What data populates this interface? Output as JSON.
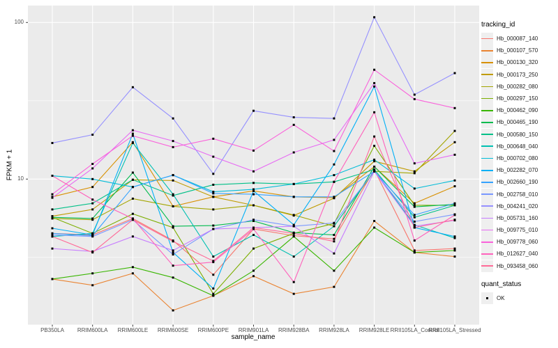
{
  "figure": {
    "ylabel": "FPKM + 1",
    "xlabel": "sample_name",
    "y_tick_labels": [
      "100",
      "10"
    ],
    "legend": {
      "title": "tracking_id"
    },
    "quant_legend": {
      "title": "quant_status",
      "items": [
        {
          "label": "OK",
          "symbol": "filled-square",
          "color": "#000000"
        }
      ]
    },
    "panel_bg": "#ebebeb",
    "grid_color": "#ffffff",
    "tick_color": "#333333",
    "tick_label_color": "#4d4d4d",
    "point_color": "#000000"
  },
  "chart_data": {
    "type": "line",
    "log_y": true,
    "title": "",
    "xlabel": "sample_name",
    "ylabel": "FPKM + 1",
    "y_ticks": [
      10,
      100
    ],
    "y_minor_ticks": [
      3.162,
      31.62
    ],
    "ylim": [
      1.15,
      130
    ],
    "grid": true,
    "legend_position": "right",
    "legend_title": "tracking_id",
    "point_marker": "black-square",
    "categories": [
      "PB350LA",
      "RRIM600LA",
      "RRIM600LE",
      "RRIM600SE",
      "RRIM600PE",
      "RRIM901LA",
      "RRIM928BA",
      "RRIM928LA",
      "RRIM928LE",
      "RRII105LA_Control",
      "RRII105LA_Stressed"
    ],
    "series": [
      {
        "name": "Hb_000087_140",
        "color": "#F8766D",
        "values": [
          4.5,
          4.4,
          5.6,
          4.05,
          2.45,
          4.8,
          4.35,
          4.15,
          11.5,
          3.5,
          3.6
        ]
      },
      {
        "name": "Hb_000107_570",
        "color": "#EA8331",
        "values": [
          2.3,
          2.1,
          2.5,
          1.45,
          1.8,
          2.4,
          1.85,
          2.05,
          5.4,
          3.4,
          3.2
        ]
      },
      {
        "name": "Hb_000130_320",
        "color": "#D89000",
        "values": [
          7.7,
          8.9,
          17.2,
          6.7,
          7.7,
          8.4,
          7.7,
          7.6,
          12.0,
          7.0,
          9.0
        ]
      },
      {
        "name": "Hb_000173_250",
        "color": "#C09B00",
        "values": [
          5.8,
          6.4,
          9.9,
          9.8,
          7.7,
          6.8,
          5.85,
          7.55,
          13.0,
          11.2,
          17.2
        ]
      },
      {
        "name": "Hb_000282_080",
        "color": "#A3A500",
        "values": [
          5.6,
          5.5,
          7.5,
          6.7,
          6.4,
          6.8,
          5.9,
          5.0,
          11.2,
          10.9,
          20.3
        ]
      },
      {
        "name": "Hb_000297_150",
        "color": "#7CAE00",
        "values": [
          5.7,
          4.5,
          6.0,
          4.9,
          1.85,
          3.6,
          4.5,
          5.2,
          16.3,
          6.8,
          6.8
        ]
      },
      {
        "name": "Hb_000462_090",
        "color": "#39B600",
        "values": [
          2.3,
          2.5,
          2.74,
          2.35,
          1.8,
          2.6,
          4.3,
          2.6,
          4.9,
          3.4,
          3.5
        ]
      },
      {
        "name": "Hb_000465_190",
        "color": "#00BB4E",
        "values": [
          5.7,
          5.6,
          11.0,
          5.0,
          5.05,
          5.4,
          4.55,
          4.4,
          12.0,
          6.65,
          6.9
        ]
      },
      {
        "name": "Hb_000580_150",
        "color": "#00C087",
        "values": [
          6.4,
          7.0,
          9.9,
          7.85,
          9.2,
          9.45,
          9.3,
          9.6,
          11.5,
          5.7,
          6.8
        ]
      },
      {
        "name": "Hb_000648_040",
        "color": "#00C0B2",
        "values": [
          4.3,
          4.5,
          17.0,
          8.0,
          3.2,
          4.4,
          3.2,
          5.0,
          11.3,
          5.1,
          4.2
        ]
      },
      {
        "name": "Hb_000702_080",
        "color": "#00BCD8",
        "values": [
          10.5,
          10.0,
          8.9,
          10.6,
          8.3,
          8.6,
          9.3,
          10.6,
          13.3,
          8.7,
          9.8
        ]
      },
      {
        "name": "Hb_002282_070",
        "color": "#00B0F6",
        "values": [
          4.85,
          4.4,
          19.5,
          3.4,
          2.0,
          8.4,
          5.1,
          12.4,
          39,
          4.9,
          4.3
        ]
      },
      {
        "name": "Hb_002660_190",
        "color": "#35A2FF",
        "values": [
          4.5,
          4.35,
          8.9,
          10.6,
          8.1,
          8.0,
          7.7,
          7.7,
          11.2,
          5.9,
          7.0
        ]
      },
      {
        "name": "Hb_002758_010",
        "color": "#7997FF",
        "values": [
          4.4,
          4.3,
          5.5,
          3.3,
          4.8,
          5.5,
          5.0,
          5.25,
          11.2,
          5.35,
          5.95
        ]
      },
      {
        "name": "Hb_004241_020",
        "color": "#9590FF",
        "values": [
          17,
          19.2,
          38.6,
          24.4,
          10.8,
          27.3,
          24.8,
          24.4,
          108,
          34.6,
          47.5
        ]
      },
      {
        "name": "Hb_005731_160",
        "color": "#C77CFF",
        "values": [
          3.6,
          3.45,
          4.3,
          3.5,
          4.8,
          4.9,
          5.0,
          3.35,
          11.2,
          5.0,
          5.45
        ]
      },
      {
        "name": "Hb_009775_010",
        "color": "#E76BF3",
        "values": [
          7.6,
          11.7,
          20.5,
          17.5,
          13.9,
          11.2,
          14.8,
          17.8,
          41,
          12.6,
          14.3
        ]
      },
      {
        "name": "Hb_009778_060",
        "color": "#FA62DB",
        "values": [
          8.0,
          12.5,
          18.9,
          16.0,
          18.1,
          15.2,
          22.2,
          15.1,
          49.9,
          32.4,
          28.4
        ]
      },
      {
        "name": "Hb_012627_040",
        "color": "#FF62BC",
        "values": [
          10.5,
          7.4,
          5.6,
          2.8,
          2.95,
          4.8,
          2.2,
          9.6,
          26.7,
          4.05,
          5.9
        ]
      },
      {
        "name": "Hb_093458_060",
        "color": "#FF6A98",
        "values": [
          4.3,
          3.4,
          5.5,
          4.0,
          3.0,
          4.9,
          4.5,
          4.0,
          18.7,
          4.9,
          5.5
        ]
      }
    ],
    "quant_status_legend": {
      "title": "quant_status",
      "entries": [
        "OK"
      ]
    }
  }
}
